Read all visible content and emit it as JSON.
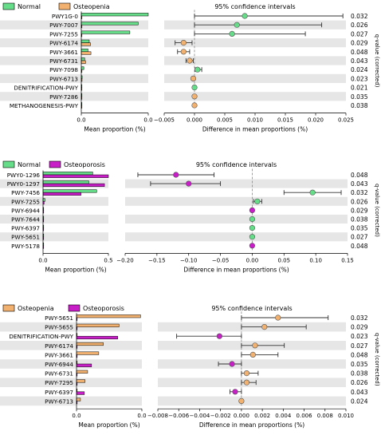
{
  "colors": {
    "normal": "#66dd88",
    "osteopenia": "#f2b16e",
    "osteoporosis": "#c81ec8",
    "stripe": "#e6e6e6"
  },
  "chart_data": [
    {
      "type": "bar",
      "legend": [
        "Normal",
        "Osteopenia"
      ],
      "series_colors": [
        "normal",
        "osteopenia"
      ],
      "title": "95% confidence intervals",
      "xlabel_left": "Mean proportion (%)",
      "xlabel_right": "Difference in mean proportions (%)",
      "q_label": "q-value (corrected)",
      "features": [
        "PWY1G-0",
        "PWY-7007",
        "PWY-7255",
        "PWY-6174",
        "PWY-3661",
        "PWY-6731",
        "PWY-7098",
        "PWY-6713",
        "DENITRIFICATION-PWY",
        "PWY-7286",
        "METHANOGENESIS-PWY"
      ],
      "prop_a": [
        0.08,
        0.068,
        0.058,
        0.0095,
        0.008,
        0.004,
        0.003,
        0.001,
        0.0006,
        0.0004,
        0.0002
      ],
      "prop_b": [
        0.0,
        0.0,
        0.0,
        0.011,
        0.0115,
        0.005,
        0.0002,
        0.0009,
        0.0006,
        0.0004,
        0.0002
      ],
      "prop_ticks": [
        "0.0",
        "0.0"
      ],
      "prop_max": 0.08,
      "diff": [
        0.0083,
        0.007,
        0.0062,
        -0.0018,
        -0.0018,
        -0.0008,
        0.0005,
        -0.0002,
        0.0,
        0.0,
        0.0
      ],
      "ci_low": [
        0.0,
        0.0,
        0.0,
        -0.0032,
        -0.0028,
        -0.0014,
        0.0001,
        -0.0004,
        0.0,
        0.0,
        0.0
      ],
      "ci_high": [
        0.0245,
        0.021,
        0.0183,
        -0.0004,
        -0.0008,
        -0.0002,
        0.0012,
        0.0,
        0.0,
        0.0,
        0.0
      ],
      "point_series": [
        0,
        0,
        0,
        1,
        1,
        1,
        0,
        1,
        0,
        1,
        1
      ],
      "q_values": [
        "0.032",
        "0.026",
        "0.027",
        "0.029",
        "0.048",
        "0.043",
        "0.024",
        "0.023",
        "0.021",
        "0.035",
        "0.038"
      ],
      "diff_ticks": [
        "−0.005",
        "0.000",
        "0.005",
        "0.010",
        "0.015",
        "0.020",
        "0.025"
      ],
      "xlim": [
        -0.005,
        0.025
      ]
    },
    {
      "type": "bar",
      "legend": [
        "Normal",
        "Osteoporosis"
      ],
      "series_colors": [
        "normal",
        "osteoporosis"
      ],
      "title": "95% confidence intervals",
      "xlabel_left": "Mean proportion (%)",
      "xlabel_right": "Difference in mean proportions (%)",
      "q_label": "q-value (corrected)",
      "features": [
        "PWY0-1296",
        "PWY0-1297",
        "PWY-7456",
        "PWY-7255",
        "PWY-6944",
        "PWY-7644",
        "PWY-6397",
        "PWY-5651",
        "PWY-5178"
      ],
      "prop_a": [
        0.38,
        0.35,
        0.41,
        0.015,
        0.004,
        0.003,
        0.003,
        0.002,
        0.002
      ],
      "prop_b": [
        0.5,
        0.47,
        0.29,
        0.008,
        0.005,
        0.003,
        0.003,
        0.002,
        0.002
      ],
      "prop_ticks": [
        "0.0",
        "0.5"
      ],
      "prop_max": 0.5,
      "diff": [
        -0.12,
        -0.1,
        0.095,
        0.008,
        0.0,
        0.0,
        0.0,
        0.0,
        0.0
      ],
      "ci_low": [
        -0.18,
        -0.16,
        0.05,
        0.002,
        0.0,
        0.0,
        0.0,
        0.0,
        0.0
      ],
      "ci_high": [
        -0.06,
        -0.05,
        0.14,
        0.015,
        0.0,
        0.0,
        0.0,
        0.0,
        0.0
      ],
      "point_series": [
        1,
        1,
        0,
        0,
        1,
        0,
        0,
        0,
        1
      ],
      "q_values": [
        "0.048",
        "0.043",
        "0.032",
        "0.026",
        "0.029",
        "0.038",
        "0.035",
        "0.027",
        "0.048"
      ],
      "diff_ticks": [
        "−0.20",
        "−0.15",
        "−0.10",
        "−0.05",
        "0.00",
        "0.05",
        "0.10",
        "0.15"
      ],
      "xlim": [
        -0.2,
        0.15
      ]
    },
    {
      "type": "bar",
      "legend": [
        "Osteopenia",
        "Osteoporosis"
      ],
      "series_colors": [
        "osteopenia",
        "osteoporosis"
      ],
      "title": "95% confidence intervals",
      "xlabel_left": "Mean proportion (%)",
      "xlabel_right": "Difference in mean proportions (%)",
      "q_label": "q-value (corrected)",
      "features": [
        "PWY-5651",
        "PWY-5655",
        "DENITRIFICATION-PWY",
        "PWY-6174",
        "PWY-3661",
        "PWY-6944",
        "PWY-6731",
        "PWY-7295",
        "PWY-6397",
        "PWY-6713"
      ],
      "prop_a": [
        0.0098,
        0.0065,
        0.0,
        0.0041,
        0.0034,
        0.0,
        0.0017,
        0.0013,
        0.0,
        0.0006
      ],
      "prop_b": [
        0.0,
        0.0,
        0.0063,
        0.0,
        0.0,
        0.0023,
        0.0,
        0.0,
        0.0012,
        0.0
      ],
      "prop_ticks": [
        "0.0",
        "0.0"
      ],
      "prop_max": 0.01,
      "diff": [
        0.0035,
        0.0022,
        -0.0021,
        0.0013,
        0.0011,
        -0.0009,
        0.0005,
        0.0005,
        -0.0006,
        0.0
      ],
      "ci_low": [
        0.0,
        0.0,
        -0.0062,
        0.0,
        0.0,
        -0.0022,
        0.0,
        0.0,
        -0.0011,
        0.0
      ],
      "ci_high": [
        0.0083,
        0.0062,
        0.0,
        0.0041,
        0.0035,
        0.0,
        0.0016,
        0.0014,
        0.0,
        0.0
      ],
      "point_series": [
        0,
        0,
        1,
        0,
        0,
        1,
        0,
        0,
        1,
        0
      ],
      "q_values": [
        "0.032",
        "0.029",
        "0.023",
        "0.027",
        "0.048",
        "0.035",
        "0.038",
        "0.026",
        "0.043",
        "0.024"
      ],
      "diff_ticks": [
        "−0.008",
        "−0.006",
        "−0.004",
        "−0.002",
        "0.000",
        "0.002",
        "0.004",
        "0.006",
        "0.008",
        "0.010"
      ],
      "xlim": [
        -0.008,
        0.01
      ]
    }
  ]
}
